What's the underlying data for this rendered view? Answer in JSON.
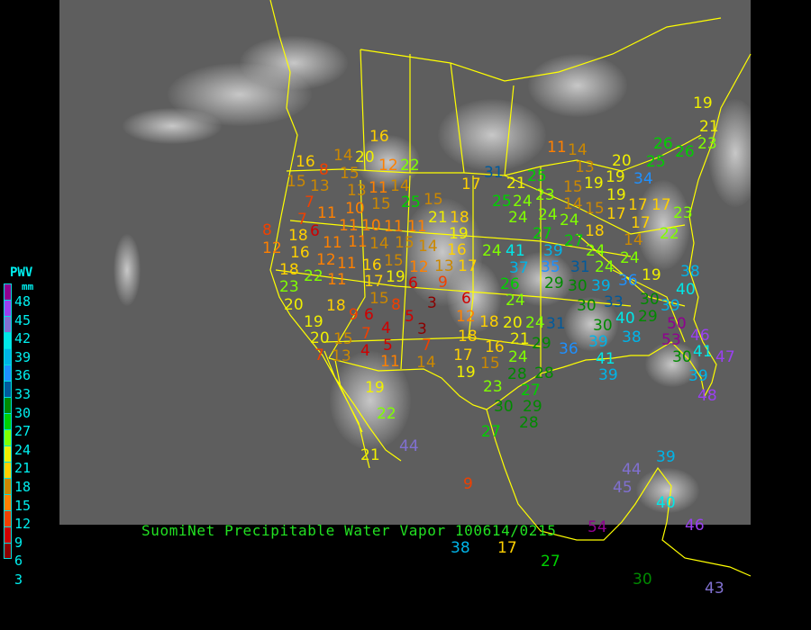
{
  "title": "SuomiNet Precipitable Water Vapor 100614/0215",
  "legend": {
    "title": "PWV",
    "unit": "mm",
    "labels": [
      "48",
      "45",
      "42",
      "39",
      "36",
      "33",
      "30",
      "27",
      "24",
      "21",
      "18",
      "15",
      "12",
      "9",
      "6",
      "3"
    ],
    "colors": [
      "#900090",
      "#9a40f0",
      "#8070d0",
      "#00e8e8",
      "#00b4e8",
      "#1e90ff",
      "#005a9c",
      "#008a00",
      "#00d000",
      "#80ff00",
      "#f0f000",
      "#ffd000",
      "#cc8800",
      "#ff8000",
      "#f04000",
      "#d00000",
      "#8b0000"
    ]
  },
  "colors": {
    "background": "#000000",
    "satellite_gray": "#5e5e5e",
    "boundaries": "#ffff00",
    "title": "#22e022",
    "legend_text": "#00f0f0"
  },
  "stations": [
    "16",
    "14",
    "20",
    "12",
    "22",
    "16",
    "8",
    "15",
    "13",
    "15",
    "13",
    "11",
    "14",
    "21",
    "17",
    "7",
    "10",
    "15",
    "25",
    "11",
    "11",
    "10",
    "11",
    "11",
    "15",
    "21",
    "18",
    "15",
    "7",
    "8",
    "18",
    "6",
    "11",
    "11",
    "14",
    "15",
    "19",
    "12",
    "16",
    "12",
    "14",
    "16",
    "18",
    "11",
    "16",
    "19",
    "13",
    "17",
    "22",
    "11",
    "17",
    "15",
    "12",
    "23",
    "6",
    "9",
    "20",
    "18",
    "19",
    "20",
    "15",
    "13",
    "9",
    "6",
    "8",
    "3",
    "6",
    "7",
    "7",
    "4",
    "5",
    "3",
    "12",
    "18",
    "20",
    "5",
    "4",
    "7",
    "11",
    "14",
    "18",
    "16",
    "17",
    "15",
    "19",
    "19",
    "22",
    "23",
    "30",
    "27",
    "44",
    "21",
    "21",
    "24",
    "31",
    "29",
    "24",
    "28",
    "27",
    "28",
    "29",
    "28",
    "31",
    "25",
    "25",
    "24",
    "24",
    "23",
    "24",
    "27",
    "24",
    "11",
    "14",
    "13",
    "19",
    "15",
    "19",
    "19",
    "20",
    "25",
    "34",
    "26",
    "26",
    "21",
    "14",
    "15",
    "17",
    "17",
    "17",
    "17",
    "14",
    "18",
    "27",
    "24",
    "24",
    "24",
    "24",
    "41",
    "37",
    "39",
    "35",
    "31",
    "29",
    "30",
    "39",
    "36",
    "26",
    "24",
    "22",
    "23",
    "19",
    "38",
    "40",
    "39",
    "30",
    "29",
    "40",
    "33",
    "30",
    "30",
    "38",
    "39",
    "36",
    "41",
    "39",
    "50",
    "53",
    "46",
    "41",
    "47",
    "30",
    "39",
    "48",
    "19",
    "23",
    "9",
    "38",
    "17",
    "54",
    "27",
    "30",
    "45",
    "44",
    "39",
    "40",
    "46",
    "43"
  ]
}
